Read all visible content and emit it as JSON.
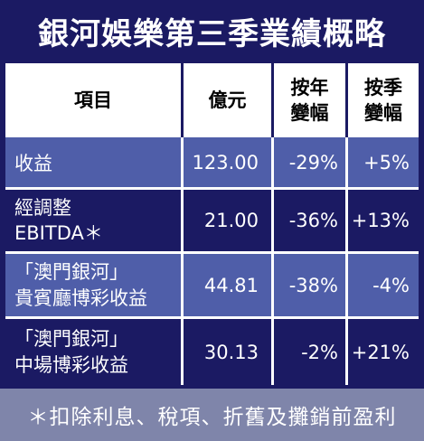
{
  "title": "銀河娛樂第三季業績概略",
  "headers": {
    "item": "項目",
    "amount": "億元",
    "yoy_line1": "按年",
    "yoy_line2": "變幅",
    "qoq_line1": "按季",
    "qoq_line2": "變幅"
  },
  "rows": [
    {
      "item_line1": "收益",
      "item_line2": "",
      "amount": "123.00",
      "yoy": "-29%",
      "qoq": "+5%"
    },
    {
      "item_line1": "經調整",
      "item_line2": "EBITDA＊",
      "amount": "21.00",
      "yoy": "-36%",
      "qoq": "+13%"
    },
    {
      "item_line1": "「澳門銀河」",
      "item_line2": "貴賓廳博彩收益",
      "amount": "44.81",
      "yoy": "-38%",
      "qoq": "-4%"
    },
    {
      "item_line1": "「澳門銀河」",
      "item_line2": "中場博彩收益",
      "amount": "30.13",
      "yoy": "-2%",
      "qoq": "+21%"
    }
  ],
  "footnote": "＊扣除利息、稅項、折舊及攤銷前盈利",
  "colors": {
    "title_bg": "#1b1a63",
    "header_bg": "#ffffff",
    "row_light": "#4f5ea9",
    "row_dark": "#1b1a63",
    "footnote_bg": "#7f85aa"
  }
}
